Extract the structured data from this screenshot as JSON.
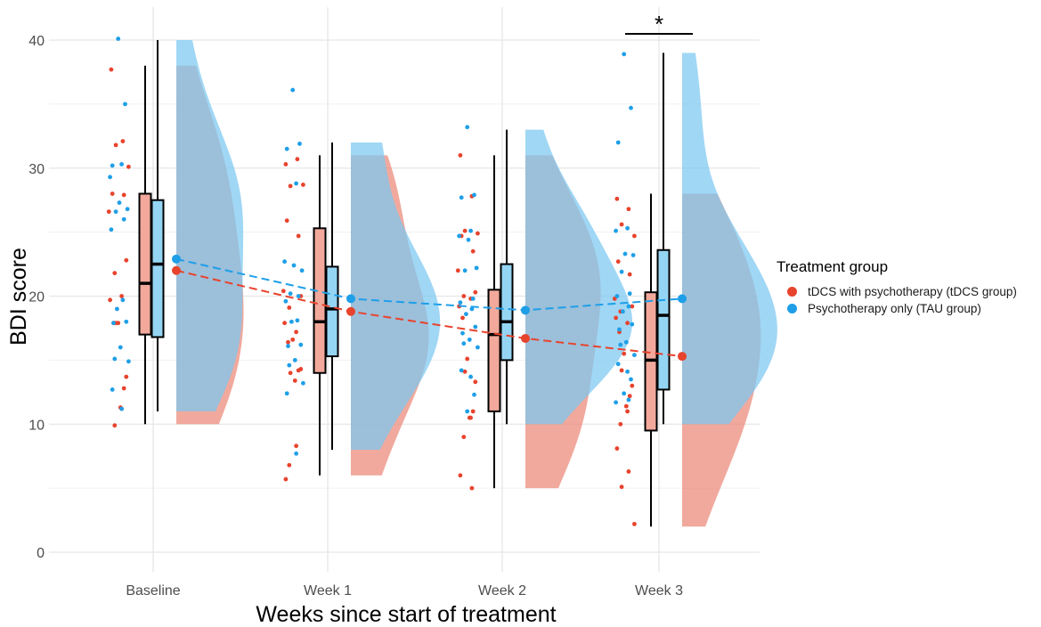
{
  "chart_data": {
    "type": "raincloud",
    "title": "",
    "xlabel": "Weeks since start of treatment",
    "ylabel": "BDI score",
    "ylim": [
      -1.5,
      41
    ],
    "yticks": [
      0,
      10,
      20,
      30,
      40
    ],
    "grid": true,
    "categories": [
      "Baseline",
      "Week 1",
      "Week 2",
      "Week 3"
    ],
    "legend": {
      "title": "Treatment group",
      "position": "right",
      "entries": [
        {
          "name": "tDCS with psychotherapy (tDCS group)",
          "color": "#e8432d"
        },
        {
          "name": "Psychotherapy only (TAU group)",
          "color": "#1e9fe8"
        }
      ]
    },
    "annotations": [
      {
        "text": "*",
        "category": "Week 3",
        "type": "significance-bracket"
      }
    ],
    "series": [
      {
        "name": "tDCS with psychotherapy (tDCS group)",
        "color": "#e8432d",
        "box_fill": "#f2a99b",
        "density_fill": "#ec8877",
        "means": [
          22.0,
          18.8,
          16.7,
          15.3
        ],
        "boxes": [
          {
            "min": 10,
            "q1": 17,
            "median": 21,
            "q3": 28,
            "max": 38
          },
          {
            "min": 6,
            "q1": 14,
            "median": 18,
            "q3": 25.3,
            "max": 31
          },
          {
            "min": 5,
            "q1": 11,
            "median": 17,
            "q3": 20.5,
            "max": 31
          },
          {
            "min": 2,
            "q1": 9.5,
            "median": 15,
            "q3": 20.3,
            "max": 28
          }
        ],
        "points": [
          [
            37.7,
            32.1,
            31.8,
            30.1,
            28.0,
            27.9,
            26.6,
            22.8,
            21.8,
            19.7,
            20.0,
            17.9,
            17.9,
            17.9,
            13.7,
            12.8,
            11.3,
            11.2,
            9.9
          ],
          [
            30.3,
            30.7,
            28.6,
            28.7,
            25.9,
            24.7,
            20.4,
            20.0,
            19.1,
            17.9,
            17.2,
            16.4,
            16.6,
            14.0,
            14.3,
            14.2,
            13.4,
            8.3,
            6.8,
            5.7
          ],
          [
            31.0,
            27.8,
            25.1,
            24.9,
            24.7,
            23.5,
            22.0,
            20.3,
            20.0,
            19.2,
            19.8,
            18.3,
            15.1,
            14.1,
            13.3,
            11.0,
            10.5,
            10.5,
            9.0,
            6.0,
            5.0
          ],
          [
            27.6,
            26.8,
            25.6,
            24.7,
            22.7,
            21.7,
            19.8,
            19.2,
            18.8,
            18.3,
            17.9,
            17.2,
            15.5,
            14.2,
            13.0,
            12.2,
            11.4,
            11.0,
            10.0,
            8.1,
            6.3,
            5.1,
            2.2
          ]
        ]
      },
      {
        "name": "Psychotherapy only (TAU group)",
        "color": "#1e9fe8",
        "box_fill": "#95d5f4",
        "density_fill": "#7cc8f1",
        "means": [
          22.9,
          19.8,
          18.9,
          19.8
        ],
        "boxes": [
          {
            "min": 11,
            "q1": 16.8,
            "median": 22.5,
            "q3": 27.5,
            "max": 40
          },
          {
            "min": 8,
            "q1": 15.3,
            "median": 19,
            "q3": 22.3,
            "max": 32
          },
          {
            "min": 10,
            "q1": 15,
            "median": 18,
            "q3": 22.5,
            "max": 33
          },
          {
            "min": 10,
            "q1": 12.7,
            "median": 18.5,
            "q3": 23.6,
            "max": 39
          }
        ],
        "points": [
          [
            40.1,
            35.0,
            30.2,
            30.3,
            29.3,
            27.3,
            26.8,
            26.6,
            26.0,
            25.2,
            19.7,
            19.0,
            18.0,
            17.9,
            16.0,
            15.1,
            14.9,
            12.7,
            11.2
          ],
          [
            36.1,
            31.9,
            31.5,
            28.8,
            22.7,
            22.4,
            22.0,
            20.2,
            20.0,
            19.6,
            18.1,
            18.0,
            16.2,
            16.1,
            15.0,
            14.6,
            13.2,
            12.4,
            7.7
          ],
          [
            33.2,
            27.9,
            27.7,
            25.1,
            24.7,
            24.4,
            22.2,
            22.0,
            19.8,
            19.5,
            19.0,
            18.6,
            17.6,
            17.1,
            16.6,
            16.3,
            16.0,
            14.2,
            13.7,
            12.3,
            11.0
          ],
          [
            38.9,
            34.7,
            32.0,
            25.3,
            25.1,
            23.3,
            23.2,
            21.9,
            20.2,
            20.0,
            19.2,
            18.8,
            17.8,
            17.4,
            16.4,
            16.2,
            15.4,
            14.7,
            14.1,
            13.5,
            12.4,
            11.9,
            11.7
          ]
        ]
      }
    ]
  }
}
